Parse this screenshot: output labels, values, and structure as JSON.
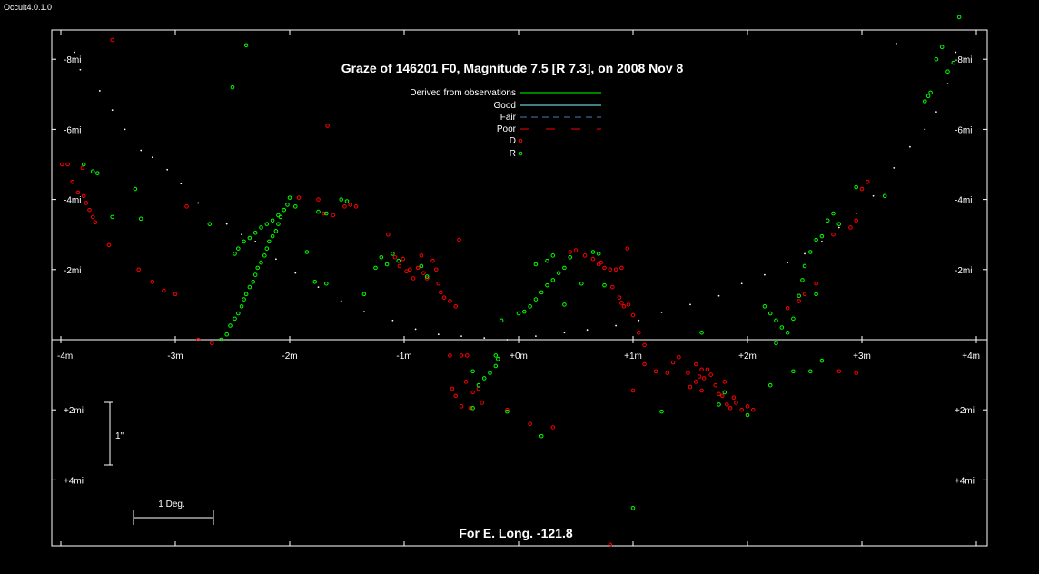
{
  "app": {
    "title": "Occult4.0.1.0"
  },
  "chart_data": {
    "type": "scatter",
    "title": "Graze of  146201 F0,  Magnitude 7.5 [R 7.3],  on 2008 Nov  8",
    "footer": "For E. Long. -121.8",
    "x_ticks": [
      "-4m",
      "-3m",
      "-2m",
      "-1m",
      "+0m",
      "+1m",
      "+2m",
      "+3m",
      "+4m"
    ],
    "x_tick_values": [
      -4,
      -3,
      -2,
      -1,
      0,
      1,
      2,
      3,
      4
    ],
    "y_ticks_left": [
      "-8mi",
      "-6mi",
      "-4mi",
      "-2mi",
      "+2mi",
      "+4mi"
    ],
    "y_ticks_right": [
      "-8mi",
      "-6mi",
      "-4mi",
      "-2mi",
      "+2mi",
      "+4mi"
    ],
    "y_tick_values": [
      -8,
      -6,
      -4,
      -2,
      2,
      4
    ],
    "xlim": [
      -4.05,
      4.05
    ],
    "ylim": [
      -8.8,
      5.8
    ],
    "legend": [
      {
        "label": "Derived from observations",
        "style": "solid",
        "color": "#00ff00"
      },
      {
        "label": "Good",
        "style": "solid",
        "color": "#80ffff"
      },
      {
        "label": "Fair",
        "style": "dash",
        "color": "#4a7ab0"
      },
      {
        "label": "Poor",
        "style": "longdash",
        "color": "#ff0000"
      },
      {
        "label": "D",
        "style": "marker",
        "color": "#ff0000"
      },
      {
        "label": "R",
        "style": "marker",
        "color": "#00ff00"
      }
    ],
    "scale_bar_vertical": "1\"",
    "scale_bar_horizontal": "1 Deg.",
    "limb_profile_points": [
      [
        -3.88,
        -8.2
      ],
      [
        -3.83,
        -7.7
      ],
      [
        -3.66,
        -7.1
      ],
      [
        -3.55,
        -6.55
      ],
      [
        -3.44,
        -6.0
      ],
      [
        -3.3,
        -5.4
      ],
      [
        -3.2,
        -5.2
      ],
      [
        -3.07,
        -4.85
      ],
      [
        -2.95,
        -4.45
      ],
      [
        -2.8,
        -3.9
      ],
      [
        -2.55,
        -3.3
      ],
      [
        -2.42,
        -3.0
      ],
      [
        -2.3,
        -2.8
      ],
      [
        -2.12,
        -2.3
      ],
      [
        -1.95,
        -1.9
      ],
      [
        -1.75,
        -1.5
      ],
      [
        -1.55,
        -1.1
      ],
      [
        -1.35,
        -0.8
      ],
      [
        -1.1,
        -0.55
      ],
      [
        -0.9,
        -0.3
      ],
      [
        -0.7,
        -0.15
      ],
      [
        -0.5,
        -0.1
      ],
      [
        -0.3,
        -0.05
      ],
      [
        -0.1,
        0.0
      ],
      [
        0.15,
        -0.1
      ],
      [
        0.4,
        -0.2
      ],
      [
        0.6,
        -0.28
      ],
      [
        0.85,
        -0.4
      ],
      [
        1.05,
        -0.55
      ],
      [
        1.25,
        -0.78
      ],
      [
        1.5,
        -1.0
      ],
      [
        1.75,
        -1.25
      ],
      [
        1.95,
        -1.6
      ],
      [
        2.15,
        -1.85
      ],
      [
        2.35,
        -2.2
      ],
      [
        2.5,
        -2.45
      ],
      [
        2.65,
        -2.8
      ],
      [
        2.8,
        -3.2
      ],
      [
        2.95,
        -3.6
      ],
      [
        3.1,
        -4.1
      ],
      [
        3.28,
        -4.9
      ],
      [
        3.42,
        -5.5
      ],
      [
        3.55,
        -6.0
      ],
      [
        3.65,
        -6.5
      ],
      [
        3.75,
        -7.3
      ],
      [
        3.82,
        -8.2
      ],
      [
        3.3,
        -8.45
      ]
    ],
    "series": [
      {
        "name": "D",
        "color": "#ff0000",
        "points": [
          [
            -3.55,
            -8.55
          ],
          [
            -3.99,
            -5.0
          ],
          [
            -3.94,
            -5.0
          ],
          [
            -3.81,
            -4.9
          ],
          [
            -3.9,
            -4.5
          ],
          [
            -3.85,
            -4.2
          ],
          [
            -3.8,
            -4.1
          ],
          [
            -3.78,
            -3.9
          ],
          [
            -3.75,
            -3.7
          ],
          [
            -3.72,
            -3.5
          ],
          [
            -3.7,
            -3.35
          ],
          [
            -3.58,
            -2.7
          ],
          [
            -3.32,
            -2.0
          ],
          [
            -3.2,
            -1.65
          ],
          [
            -3.1,
            -1.4
          ],
          [
            -3.0,
            -1.3
          ],
          [
            -2.9,
            -3.8
          ],
          [
            -2.8,
            0.0
          ],
          [
            -2.68,
            0.1
          ],
          [
            -1.92,
            -4.05
          ],
          [
            -1.75,
            -4.0
          ],
          [
            -1.7,
            -3.6
          ],
          [
            -1.67,
            -6.1
          ],
          [
            -1.62,
            -3.55
          ],
          [
            -1.52,
            -3.8
          ],
          [
            -1.47,
            -3.85
          ],
          [
            -1.42,
            -3.8
          ],
          [
            -1.14,
            -3.0
          ],
          [
            -1.08,
            -2.35
          ],
          [
            -1.04,
            -2.1
          ],
          [
            -1.01,
            -2.3
          ],
          [
            -0.98,
            -1.95
          ],
          [
            -0.95,
            -2.0
          ],
          [
            -0.92,
            -1.75
          ],
          [
            -0.88,
            -2.05
          ],
          [
            -0.85,
            -2.4
          ],
          [
            -0.83,
            -1.9
          ],
          [
            -0.8,
            -1.75
          ],
          [
            -0.75,
            -2.25
          ],
          [
            -0.72,
            -2.0
          ],
          [
            -0.7,
            -1.6
          ],
          [
            -0.68,
            -1.35
          ],
          [
            -0.65,
            -1.2
          ],
          [
            -0.6,
            -1.1
          ],
          [
            -0.55,
            -0.95
          ],
          [
            -0.52,
            -2.85
          ],
          [
            -0.45,
            0.45
          ],
          [
            -0.5,
            0.45
          ],
          [
            -0.58,
            1.4
          ],
          [
            -0.55,
            1.6
          ],
          [
            -0.5,
            1.9
          ],
          [
            -0.42,
            1.95
          ],
          [
            -0.46,
            1.2
          ],
          [
            -0.4,
            1.5
          ],
          [
            -0.35,
            1.4
          ],
          [
            -0.32,
            1.8
          ],
          [
            -0.1,
            2.0
          ],
          [
            0.1,
            2.4
          ],
          [
            0.3,
            2.5
          ],
          [
            0.45,
            -2.5
          ],
          [
            0.5,
            -2.55
          ],
          [
            0.58,
            -2.4
          ],
          [
            0.65,
            -2.3
          ],
          [
            0.72,
            -2.2
          ],
          [
            0.75,
            -2.05
          ],
          [
            0.8,
            -2.0
          ],
          [
            0.85,
            -2.0
          ],
          [
            0.9,
            -2.05
          ],
          [
            0.95,
            -2.6
          ],
          [
            0.7,
            -2.15
          ],
          [
            0.82,
            -1.5
          ],
          [
            0.88,
            -1.2
          ],
          [
            0.9,
            -1.05
          ],
          [
            0.92,
            -0.95
          ],
          [
            0.96,
            -1.0
          ],
          [
            1.0,
            -0.7
          ],
          [
            1.05,
            -0.2
          ],
          [
            1.1,
            0.15
          ],
          [
            1.1,
            0.7
          ],
          [
            1.2,
            0.9
          ],
          [
            1.3,
            0.95
          ],
          [
            1.35,
            0.65
          ],
          [
            1.4,
            0.5
          ],
          [
            1.48,
            0.95
          ],
          [
            1.55,
            0.7
          ],
          [
            1.6,
            0.85
          ],
          [
            1.58,
            1.05
          ],
          [
            1.62,
            1.1
          ],
          [
            1.55,
            1.2
          ],
          [
            1.5,
            1.35
          ],
          [
            1.65,
            0.85
          ],
          [
            1.68,
            1.0
          ],
          [
            1.72,
            1.3
          ],
          [
            1.75,
            1.55
          ],
          [
            1.78,
            1.6
          ],
          [
            1.82,
            1.85
          ],
          [
            1.85,
            1.95
          ],
          [
            1.88,
            1.65
          ],
          [
            1.9,
            1.8
          ],
          [
            1.95,
            2.0
          ],
          [
            2.0,
            1.9
          ],
          [
            2.05,
            2.0
          ],
          [
            1.8,
            1.2
          ],
          [
            1.6,
            1.45
          ],
          [
            2.45,
            -1.1
          ],
          [
            2.5,
            -1.3
          ],
          [
            2.6,
            -1.6
          ],
          [
            2.75,
            -3.0
          ],
          [
            2.9,
            -3.2
          ],
          [
            2.95,
            -3.4
          ],
          [
            3.0,
            -4.3
          ],
          [
            3.05,
            -4.5
          ],
          [
            2.8,
            0.9
          ],
          [
            2.95,
            0.95
          ],
          [
            1.0,
            1.45
          ],
          [
            0.8,
            5.85
          ],
          [
            -0.6,
            0.45
          ],
          [
            2.35,
            -0.9
          ]
        ]
      },
      {
        "name": "R",
        "color": "#00ff00",
        "points": [
          [
            -2.38,
            -8.4
          ],
          [
            -2.5,
            -7.2
          ],
          [
            -3.35,
            -4.3
          ],
          [
            -3.3,
            -3.45
          ],
          [
            -3.55,
            -3.5
          ],
          [
            -3.8,
            -5.0
          ],
          [
            -3.72,
            -4.8
          ],
          [
            -3.68,
            -4.75
          ],
          [
            -2.7,
            -3.3
          ],
          [
            -2.6,
            0.0
          ],
          [
            -2.55,
            -0.15
          ],
          [
            -2.52,
            -0.4
          ],
          [
            -2.48,
            -0.6
          ],
          [
            -2.45,
            -0.75
          ],
          [
            -2.42,
            -0.95
          ],
          [
            -2.4,
            -1.15
          ],
          [
            -2.38,
            -1.3
          ],
          [
            -2.35,
            -1.5
          ],
          [
            -2.32,
            -1.65
          ],
          [
            -2.3,
            -1.85
          ],
          [
            -2.28,
            -2.05
          ],
          [
            -2.25,
            -2.2
          ],
          [
            -2.22,
            -2.4
          ],
          [
            -2.2,
            -2.6
          ],
          [
            -2.18,
            -2.8
          ],
          [
            -2.15,
            -2.95
          ],
          [
            -2.12,
            -3.1
          ],
          [
            -2.1,
            -3.3
          ],
          [
            -2.08,
            -3.5
          ],
          [
            -2.05,
            -3.7
          ],
          [
            -2.02,
            -3.85
          ],
          [
            -2.0,
            -4.05
          ],
          [
            -2.1,
            -3.55
          ],
          [
            -2.15,
            -3.4
          ],
          [
            -2.2,
            -3.3
          ],
          [
            -2.25,
            -3.2
          ],
          [
            -2.3,
            -3.05
          ],
          [
            -2.35,
            -2.9
          ],
          [
            -2.4,
            -2.8
          ],
          [
            -2.45,
            -2.6
          ],
          [
            -2.48,
            -2.45
          ],
          [
            -1.95,
            -3.8
          ],
          [
            -1.75,
            -3.65
          ],
          [
            -1.68,
            -3.6
          ],
          [
            -1.55,
            -4.0
          ],
          [
            -1.5,
            -3.95
          ],
          [
            -1.85,
            -2.5
          ],
          [
            -1.78,
            -1.65
          ],
          [
            -1.68,
            -1.6
          ],
          [
            -1.35,
            -1.3
          ],
          [
            -1.25,
            -2.05
          ],
          [
            -1.2,
            -2.35
          ],
          [
            -1.15,
            -2.15
          ],
          [
            -1.1,
            -2.45
          ],
          [
            -1.05,
            -2.25
          ],
          [
            -0.85,
            -2.1
          ],
          [
            -0.8,
            -1.8
          ],
          [
            -0.4,
            0.9
          ],
          [
            -0.35,
            1.3
          ],
          [
            -0.3,
            1.1
          ],
          [
            -0.25,
            0.95
          ],
          [
            -0.2,
            0.75
          ],
          [
            -0.18,
            0.55
          ],
          [
            -0.2,
            0.45
          ],
          [
            -0.4,
            1.95
          ],
          [
            -0.1,
            2.05
          ],
          [
            0.2,
            2.75
          ],
          [
            -0.15,
            -0.55
          ],
          [
            0.0,
            -0.75
          ],
          [
            0.05,
            -0.8
          ],
          [
            0.1,
            -0.95
          ],
          [
            0.15,
            -1.15
          ],
          [
            0.2,
            -1.35
          ],
          [
            0.25,
            -1.55
          ],
          [
            0.3,
            -1.7
          ],
          [
            0.35,
            -1.9
          ],
          [
            0.4,
            -2.05
          ],
          [
            0.45,
            -2.35
          ],
          [
            0.25,
            -2.25
          ],
          [
            0.3,
            -2.4
          ],
          [
            0.15,
            -2.15
          ],
          [
            0.55,
            -1.6
          ],
          [
            0.65,
            -2.5
          ],
          [
            0.7,
            -2.45
          ],
          [
            0.75,
            -1.55
          ],
          [
            0.4,
            -1.0
          ],
          [
            1.0,
            4.8
          ],
          [
            1.25,
            2.05
          ],
          [
            2.0,
            2.15
          ],
          [
            1.8,
            1.5
          ],
          [
            1.75,
            1.85
          ],
          [
            2.15,
            -0.95
          ],
          [
            2.2,
            -0.75
          ],
          [
            2.25,
            -0.55
          ],
          [
            2.3,
            -0.35
          ],
          [
            2.4,
            -0.6
          ],
          [
            2.45,
            -1.25
          ],
          [
            2.48,
            -1.7
          ],
          [
            2.5,
            -2.1
          ],
          [
            2.55,
            -2.5
          ],
          [
            2.6,
            -2.85
          ],
          [
            2.65,
            -2.95
          ],
          [
            2.7,
            -3.4
          ],
          [
            2.75,
            -3.6
          ],
          [
            2.8,
            -3.3
          ],
          [
            2.95,
            -4.35
          ],
          [
            3.2,
            -4.1
          ],
          [
            3.55,
            -6.8
          ],
          [
            3.6,
            -7.05
          ],
          [
            3.65,
            -8.0
          ],
          [
            3.7,
            -8.35
          ],
          [
            3.75,
            -7.65
          ],
          [
            3.8,
            -7.9
          ],
          [
            3.85,
            -9.2
          ],
          [
            3.58,
            -6.95
          ],
          [
            2.2,
            1.3
          ],
          [
            2.4,
            0.9
          ],
          [
            2.55,
            0.9
          ],
          [
            2.65,
            0.6
          ],
          [
            2.25,
            0.1
          ],
          [
            2.35,
            -0.2
          ],
          [
            2.6,
            -1.3
          ],
          [
            1.6,
            -0.2
          ]
        ]
      }
    ]
  }
}
